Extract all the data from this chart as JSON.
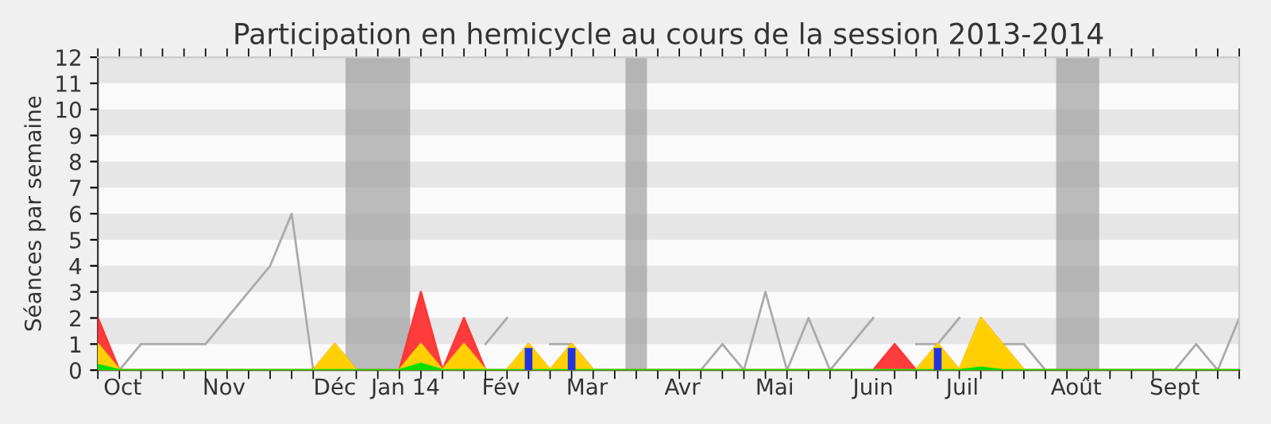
{
  "chart_data": {
    "type": "area",
    "title": "Participation en hemicycle au cours de la session 2013-2014",
    "ylabel": "Séances par semaine",
    "x": [
      "2013-09-23",
      "2013-09-30",
      "2013-10-07",
      "2013-10-14",
      "2013-10-21",
      "2013-10-28",
      "2013-11-04",
      "2013-11-11",
      "2013-11-18",
      "2013-11-25",
      "2013-12-02",
      "2013-12-09",
      "2013-12-16",
      "2013-12-23",
      "2013-12-30",
      "2014-01-06",
      "2014-01-13",
      "2014-01-20",
      "2014-01-27",
      "2014-02-03",
      "2014-02-10",
      "2014-02-17",
      "2014-02-24",
      "2014-03-03",
      "2014-03-10",
      "2014-03-17",
      "2014-03-24",
      "2014-03-31",
      "2014-04-07",
      "2014-04-14",
      "2014-04-21",
      "2014-04-28",
      "2014-05-05",
      "2014-05-12",
      "2014-05-19",
      "2014-05-26",
      "2014-06-02",
      "2014-06-09",
      "2014-06-16",
      "2014-06-23",
      "2014-06-30",
      "2014-07-07",
      "2014-07-14",
      "2014-07-21",
      "2014-07-28",
      "2014-08-04",
      "2014-08-11",
      "2014-08-18",
      "2014-08-25",
      "2014-09-01",
      "2014-09-08",
      "2014-09-15",
      "2014-09-22",
      "2014-09-29"
    ],
    "series": [
      {
        "color": "#ff3333",
        "values": [
          2,
          0,
          0,
          0,
          0,
          0,
          0,
          0,
          0,
          0,
          0,
          1,
          0,
          0,
          0,
          3,
          0,
          2,
          0,
          0,
          1,
          0,
          1,
          0,
          0,
          0,
          0,
          0,
          0,
          0,
          0,
          0,
          0,
          0,
          0,
          0,
          0,
          1,
          0,
          1,
          0,
          2,
          1,
          0,
          0,
          0,
          0,
          0,
          0,
          0,
          0,
          0,
          0,
          0
        ]
      },
      {
        "color": "#ffd700",
        "values": [
          1,
          0,
          0,
          0,
          0,
          0,
          0,
          0,
          0,
          0,
          0,
          1,
          0,
          0,
          0,
          1,
          0,
          1,
          0,
          0,
          1,
          0,
          1,
          0,
          0,
          0,
          0,
          0,
          0,
          0,
          0,
          0,
          0,
          0,
          0,
          0,
          0,
          0,
          0,
          1,
          0,
          2,
          1,
          0,
          0,
          0,
          0,
          0,
          0,
          0,
          0,
          0,
          0,
          0
        ]
      },
      {
        "color": "#00dd00",
        "values": [
          0.2,
          0,
          0,
          0,
          0,
          0,
          0,
          0,
          0,
          0,
          0,
          0,
          0,
          0,
          0,
          0.25,
          0,
          0,
          0,
          0,
          0,
          0,
          0,
          0,
          0,
          0,
          0,
          0,
          0,
          0,
          0,
          0,
          0,
          0,
          0,
          0,
          0,
          0,
          0,
          0,
          0,
          0.1,
          0,
          0,
          0,
          0,
          0,
          0,
          0,
          0,
          0,
          0,
          0,
          0
        ]
      },
      {
        "type": "bar",
        "color": "#2233dd",
        "x": [
          "2014-02-10",
          "2014-02-24",
          "2014-06-23"
        ],
        "values": [
          0.85,
          0.85,
          0.85
        ]
      },
      {
        "type": "line",
        "color": "#aaaaaa",
        "x": [
          "2013-09-30",
          "2013-10-07",
          "2013-10-14",
          "2013-10-21",
          "2013-10-28",
          "2013-11-04",
          "2013-11-11",
          "2013-11-18",
          "2013-11-25",
          "2013-12-02",
          "2013-12-09",
          "2013-12-16",
          "2013-12-23",
          "2013-12-30",
          "2014-01-06",
          "2014-01-13",
          "2014-01-20",
          "2014-01-27",
          "2014-02-03",
          "2014-02-10",
          "2014-02-17",
          "2014-02-24",
          "2014-03-03",
          "2014-03-10",
          "2014-03-17",
          "2014-03-24",
          "2014-03-31",
          "2014-04-07",
          "2014-04-14",
          "2014-04-21",
          "2014-04-28",
          "2014-05-05",
          "2014-05-12",
          "2014-05-19",
          "2014-05-26",
          "2014-06-02",
          "2014-06-09",
          "2014-06-16",
          "2014-06-23",
          "2014-06-30",
          "2014-07-07",
          "2014-07-14",
          "2014-07-21",
          "2014-07-28",
          "2014-08-04",
          "2014-08-11",
          "2014-08-18",
          "2014-08-25",
          "2014-09-01",
          "2014-09-08",
          "2014-09-15",
          "2014-09-22",
          "2014-09-29"
        ],
        "values": [
          0,
          1,
          1,
          1,
          1,
          2,
          3,
          4,
          6,
          0,
          0,
          0,
          0,
          0,
          0,
          0,
          null,
          1,
          2,
          null,
          1,
          1,
          0,
          0,
          0,
          0,
          0,
          0,
          1,
          0,
          3,
          0,
          2,
          0,
          1,
          2,
          null,
          1,
          1,
          2,
          null,
          1,
          1,
          0,
          0,
          0,
          0,
          0,
          0,
          0,
          1,
          0,
          2
        ]
      }
    ],
    "xlim": [
      "2013-09-23",
      "2014-09-29"
    ],
    "xticks": [
      {
        "value": "2013-10-01",
        "label": "Oct"
      },
      {
        "value": "2013-11-03",
        "label": "Nov"
      },
      {
        "value": "2013-12-09",
        "label": "Déc"
      },
      {
        "value": "2014-01-01",
        "label": "Jan 14"
      },
      {
        "value": "2014-02-01",
        "label": "Fév"
      },
      {
        "value": "2014-03-01",
        "label": "Mar"
      },
      {
        "value": "2014-04-01",
        "label": "Avr"
      },
      {
        "value": "2014-05-01",
        "label": "Mai"
      },
      {
        "value": "2014-06-02",
        "label": "Juin"
      },
      {
        "value": "2014-07-01",
        "label": "Juil"
      },
      {
        "value": "2014-08-07",
        "label": "Août"
      },
      {
        "value": "2014-09-08",
        "label": "Sept"
      }
    ],
    "ylim": [
      0,
      12
    ],
    "yticks": [
      0,
      1,
      2,
      3,
      4,
      5,
      6,
      7,
      8,
      9,
      10,
      11,
      12
    ],
    "bands": [
      {
        "axis": "x",
        "from": "2013-12-12T12:00",
        "to": "2014-01-02T12:00",
        "color": "#999999"
      },
      {
        "axis": "x",
        "from": "2014-03-13T12:00",
        "to": "2014-03-20T12:00",
        "color": "#999999"
      },
      {
        "axis": "x",
        "from": "2014-07-31T12:00",
        "to": "2014-08-14T12:00",
        "color": "#999999"
      }
    ],
    "legend": false
  }
}
